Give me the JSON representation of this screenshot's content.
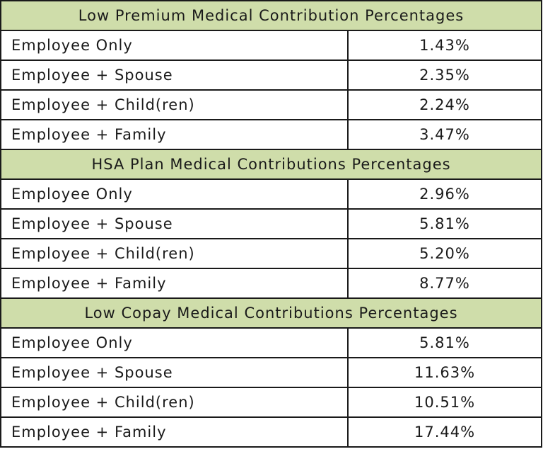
{
  "colors": {
    "header_background": "#cfddaa",
    "border": "#1a1a1a",
    "text": "#1a1a1a",
    "row_background": "#ffffff"
  },
  "sections": [
    {
      "title": "Low Premium Medical Contribution Percentages",
      "rows": [
        {
          "label": "Employee Only",
          "value": "1.43%"
        },
        {
          "label": "Employee + Spouse",
          "value": "2.35%"
        },
        {
          "label": "Employee + Child(ren)",
          "value": "2.24%"
        },
        {
          "label": "Employee + Family",
          "value": "3.47%"
        }
      ]
    },
    {
      "title": "HSA Plan Medical Contributions Percentages",
      "rows": [
        {
          "label": "Employee Only",
          "value": "2.96%"
        },
        {
          "label": "Employee + Spouse",
          "value": "5.81%"
        },
        {
          "label": "Employee + Child(ren)",
          "value": "5.20%"
        },
        {
          "label": "Employee + Family",
          "value": "8.77%"
        }
      ]
    },
    {
      "title": "Low Copay Medical Contributions Percentages",
      "rows": [
        {
          "label": "Employee Only",
          "value": "5.81%"
        },
        {
          "label": "Employee + Spouse",
          "value": "11.63%"
        },
        {
          "label": "Employee + Child(ren)",
          "value": "10.51%"
        },
        {
          "label": "Employee + Family",
          "value": "17.44%"
        }
      ]
    }
  ]
}
